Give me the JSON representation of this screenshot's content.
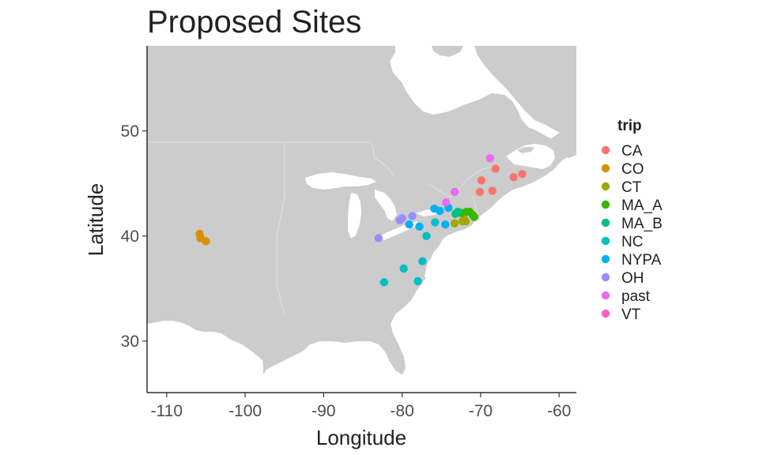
{
  "chart_data": {
    "type": "scatter",
    "title": "Proposed Sites",
    "xlabel": "Longitude",
    "ylabel": "Latitude",
    "xlim": [
      -112.5,
      -57.8
    ],
    "ylim": [
      25.1,
      58.1
    ],
    "x_ticks": [
      -110,
      -100,
      -90,
      -80,
      -70,
      -60
    ],
    "x_tick_labels": [
      "-110",
      "-100",
      "-90",
      "-80",
      "-70",
      "-60"
    ],
    "y_ticks": [
      30,
      40,
      50
    ],
    "y_tick_labels": [
      "30",
      "40",
      "50"
    ],
    "grid": false,
    "background": "map of eastern North America (grey land, white water)",
    "land_color": "#cccccc",
    "legend": {
      "title": "trip",
      "placement": "right",
      "entries": [
        {
          "name": "CA",
          "color": "#F8766D"
        },
        {
          "name": "CO",
          "color": "#D89000"
        },
        {
          "name": "CT",
          "color": "#A3A500"
        },
        {
          "name": "MA_A",
          "color": "#39B600"
        },
        {
          "name": "MA_B",
          "color": "#00BF7D"
        },
        {
          "name": "NC",
          "color": "#00BFC4"
        },
        {
          "name": "NYPA",
          "color": "#00B0F6"
        },
        {
          "name": "OH",
          "color": "#9590FF"
        },
        {
          "name": "past",
          "color": "#E76BF3"
        },
        {
          "name": "VT",
          "color": "#FF62BC"
        }
      ]
    },
    "series": [
      {
        "name": "CA",
        "color": "#F8766D",
        "points": [
          [
            -68.1,
            46.4
          ],
          [
            -65.8,
            45.6
          ],
          [
            -64.7,
            45.9
          ],
          [
            -69.9,
            45.3
          ],
          [
            -68.5,
            44.3
          ],
          [
            -70.1,
            44.2
          ]
        ]
      },
      {
        "name": "CO",
        "color": "#D89000",
        "points": [
          [
            -105.8,
            40.2
          ],
          [
            -105.7,
            39.8
          ],
          [
            -105.0,
            39.5
          ]
        ]
      },
      {
        "name": "CT",
        "color": "#A3A500",
        "points": [
          [
            -72.1,
            41.6
          ],
          [
            -71.9,
            41.4
          ],
          [
            -72.3,
            41.4
          ],
          [
            -73.3,
            41.2
          ]
        ]
      },
      {
        "name": "MA_A",
        "color": "#39B600",
        "points": [
          [
            -71.8,
            42.3
          ],
          [
            -71.4,
            42.3
          ],
          [
            -71.0,
            42.0
          ],
          [
            -70.8,
            41.8
          ],
          [
            -72.5,
            42.2
          ]
        ]
      },
      {
        "name": "MA_B",
        "color": "#00BF7D",
        "points": [
          [
            -72.9,
            42.3
          ],
          [
            -73.2,
            42.1
          ]
        ]
      },
      {
        "name": "NC",
        "color": "#00BFC4",
        "points": [
          [
            -82.3,
            35.6
          ],
          [
            -79.8,
            36.9
          ],
          [
            -78.0,
            35.7
          ],
          [
            -77.4,
            37.6
          ],
          [
            -76.9,
            40.0
          ],
          [
            -75.8,
            41.3
          ]
        ]
      },
      {
        "name": "NYPA",
        "color": "#00B0F6",
        "points": [
          [
            -75.9,
            42.6
          ],
          [
            -75.2,
            42.4
          ],
          [
            -74.1,
            42.7
          ],
          [
            -79.1,
            41.1
          ],
          [
            -77.8,
            40.9
          ],
          [
            -74.5,
            41.1
          ]
        ]
      },
      {
        "name": "OH",
        "color": "#9590FF",
        "points": [
          [
            -83.0,
            39.8
          ],
          [
            -80.3,
            41.5
          ],
          [
            -80.0,
            41.7
          ],
          [
            -78.7,
            41.9
          ]
        ]
      },
      {
        "name": "past",
        "color": "#E76BF3",
        "points": [
          [
            -68.8,
            47.4
          ],
          [
            -73.3,
            44.2
          ],
          [
            -74.4,
            43.2
          ]
        ]
      },
      {
        "name": "VT",
        "color": "#FF62BC",
        "points": []
      }
    ]
  }
}
